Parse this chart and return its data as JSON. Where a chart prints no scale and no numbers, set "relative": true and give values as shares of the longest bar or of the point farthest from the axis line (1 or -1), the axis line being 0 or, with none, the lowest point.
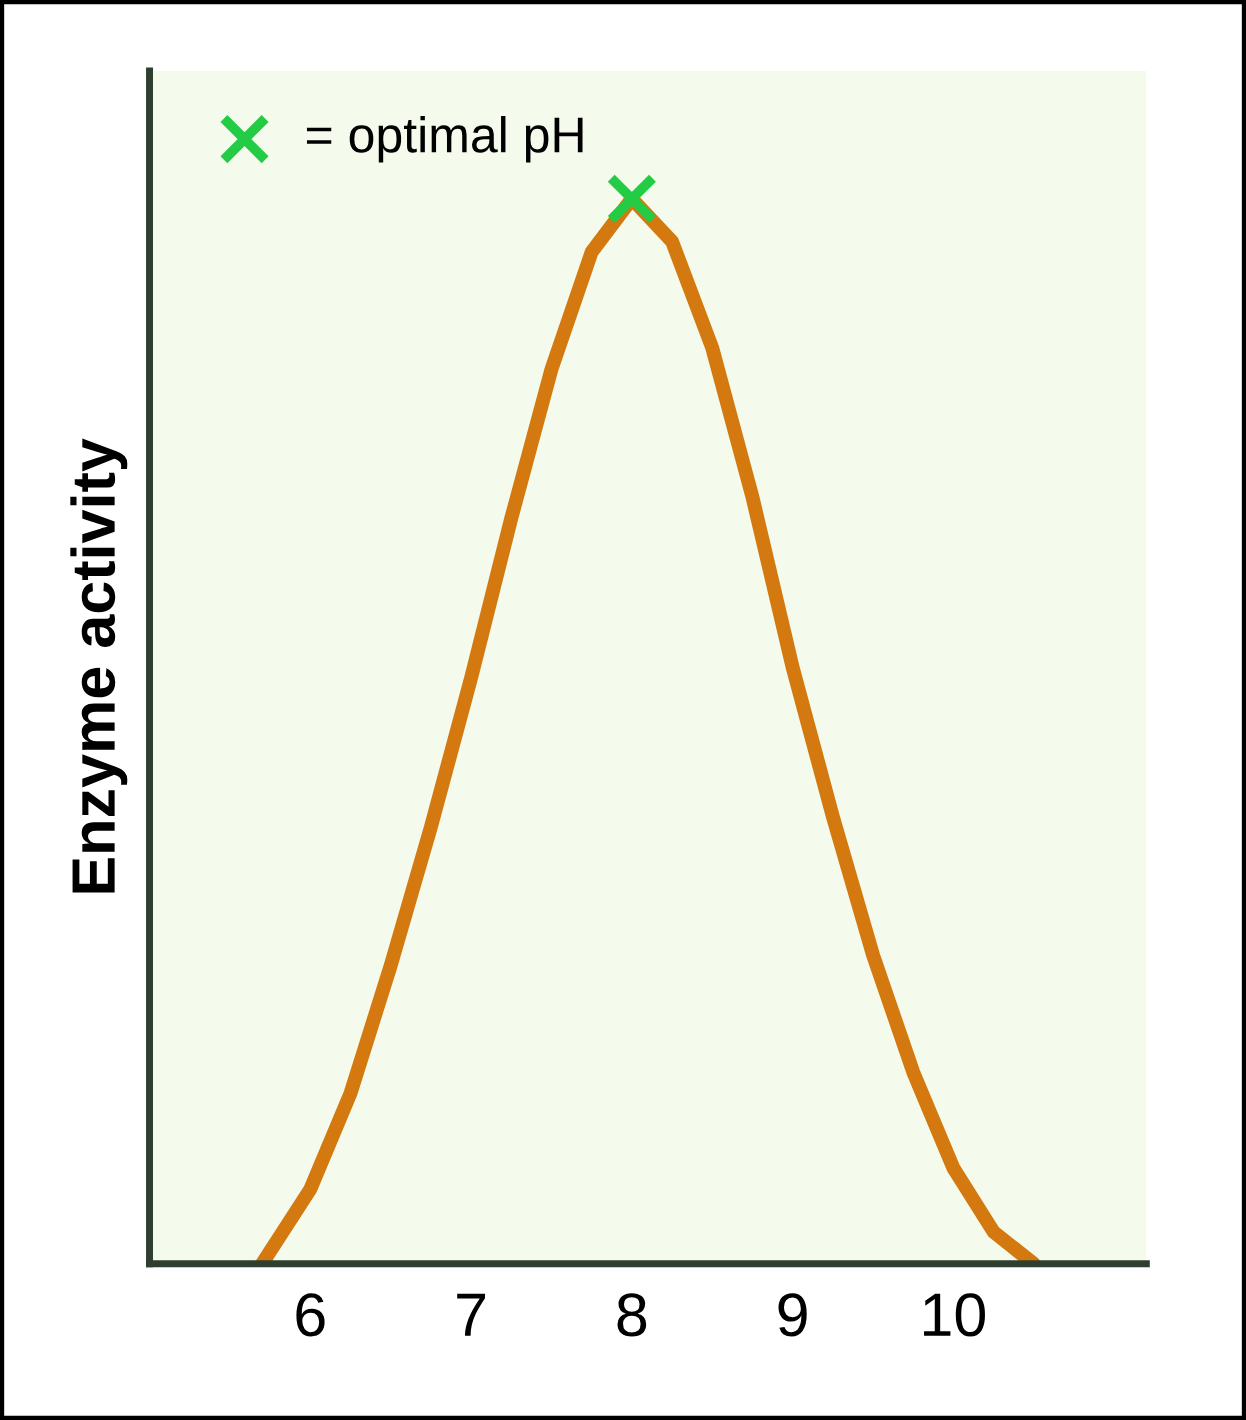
{
  "chart_data": {
    "type": "line",
    "ylabel": "Enzyme activity",
    "relative": true,
    "xlim": [
      5,
      11.2
    ],
    "xticks": [
      6,
      7,
      8,
      9,
      10
    ],
    "series": [
      {
        "type": "line",
        "color": "#d4790f",
        "x": [
          5.7,
          6.0,
          6.25,
          6.5,
          6.75,
          7.0,
          7.25,
          7.5,
          7.75,
          8.0,
          8.25,
          8.5,
          8.75,
          9.0,
          9.25,
          9.5,
          9.75,
          10.0,
          10.25,
          10.5
        ],
        "values": [
          0,
          0.07,
          0.16,
          0.28,
          0.41,
          0.55,
          0.7,
          0.84,
          0.95,
          1,
          0.96,
          0.86,
          0.72,
          0.56,
          0.42,
          0.29,
          0.18,
          0.09,
          0.03,
          0
        ]
      },
      {
        "type": "scatter",
        "name": "= optimal pH",
        "color": "#22cc44",
        "marker": "cross",
        "x": [
          8
        ],
        "values": [
          1
        ]
      }
    ],
    "legend": "top left"
  }
}
